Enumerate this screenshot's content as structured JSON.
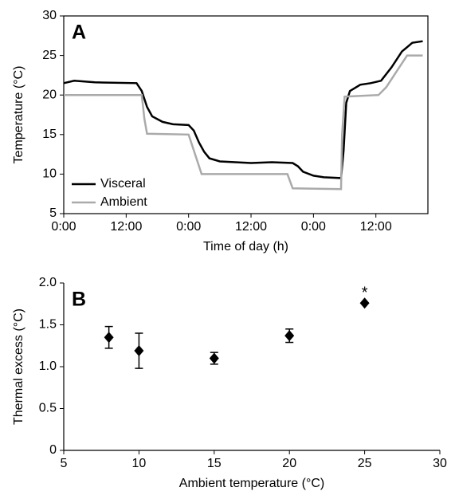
{
  "chart_data": [
    {
      "type": "line",
      "panel_label": "A",
      "x_label": "Time of day (h)",
      "y_label": "Temperature (°C)",
      "xlim": [
        0,
        70
      ],
      "ylim": [
        5,
        30
      ],
      "xticks": [
        {
          "value": 0,
          "label": "0:00"
        },
        {
          "value": 12,
          "label": "12:00"
        },
        {
          "value": 24,
          "label": "0:00"
        },
        {
          "value": 36,
          "label": "12:00"
        },
        {
          "value": 48,
          "label": "0:00"
        },
        {
          "value": 60,
          "label": "12:00"
        }
      ],
      "yticks": [
        5,
        10,
        15,
        20,
        25,
        30
      ],
      "legend": "lower left",
      "series": [
        {
          "name": "Visceral",
          "color": "#000000",
          "x": [
            0,
            2,
            6,
            14,
            15,
            16,
            17,
            19,
            21,
            24,
            25,
            26,
            27,
            28,
            30,
            36,
            40,
            44,
            45,
            46,
            48,
            50,
            53.3,
            53.8,
            54.3,
            55,
            57,
            59,
            61,
            63,
            65,
            67,
            69
          ],
          "values": [
            21.5,
            21.8,
            21.6,
            21.5,
            20.5,
            18.5,
            17.3,
            16.6,
            16.3,
            16.2,
            15.5,
            14,
            12.8,
            12,
            11.6,
            11.4,
            11.5,
            11.4,
            11,
            10.3,
            9.8,
            9.6,
            9.5,
            13,
            19,
            20.5,
            21.3,
            21.5,
            21.8,
            23.5,
            25.5,
            26.6,
            26.8
          ]
        },
        {
          "name": "Ambient",
          "color": "#aaaaaa",
          "x": [
            0,
            15,
            15.5,
            16,
            24,
            25,
            26.5,
            43,
            44,
            53.3,
            53.5,
            54,
            60.5,
            62,
            64,
            66,
            69
          ],
          "values": [
            20,
            20,
            17,
            15.1,
            15,
            13,
            10,
            10,
            8.2,
            8.1,
            15,
            19.8,
            20,
            21,
            23,
            25,
            25
          ]
        }
      ]
    },
    {
      "type": "scatter",
      "panel_label": "B",
      "x_label": "Ambient temperature (°C)",
      "y_label": "Thermal excess (°C)",
      "xlim": [
        5,
        30
      ],
      "ylim": [
        0,
        2
      ],
      "xticks": [
        5,
        10,
        15,
        20,
        25,
        30
      ],
      "yticks": [
        0,
        0.5,
        {
          "value": 1,
          "label": "1.0"
        },
        1.5,
        {
          "value": 2,
          "label": "2.0"
        }
      ],
      "color": "#000000",
      "x": [
        8,
        10,
        15,
        20,
        25
      ],
      "values": [
        1.35,
        1.19,
        1.1,
        1.37,
        1.76
      ],
      "errors": [
        0.13,
        0.21,
        0.07,
        0.08,
        null
      ],
      "annotations": [
        {
          "x": 25,
          "text": "*"
        }
      ]
    }
  ]
}
